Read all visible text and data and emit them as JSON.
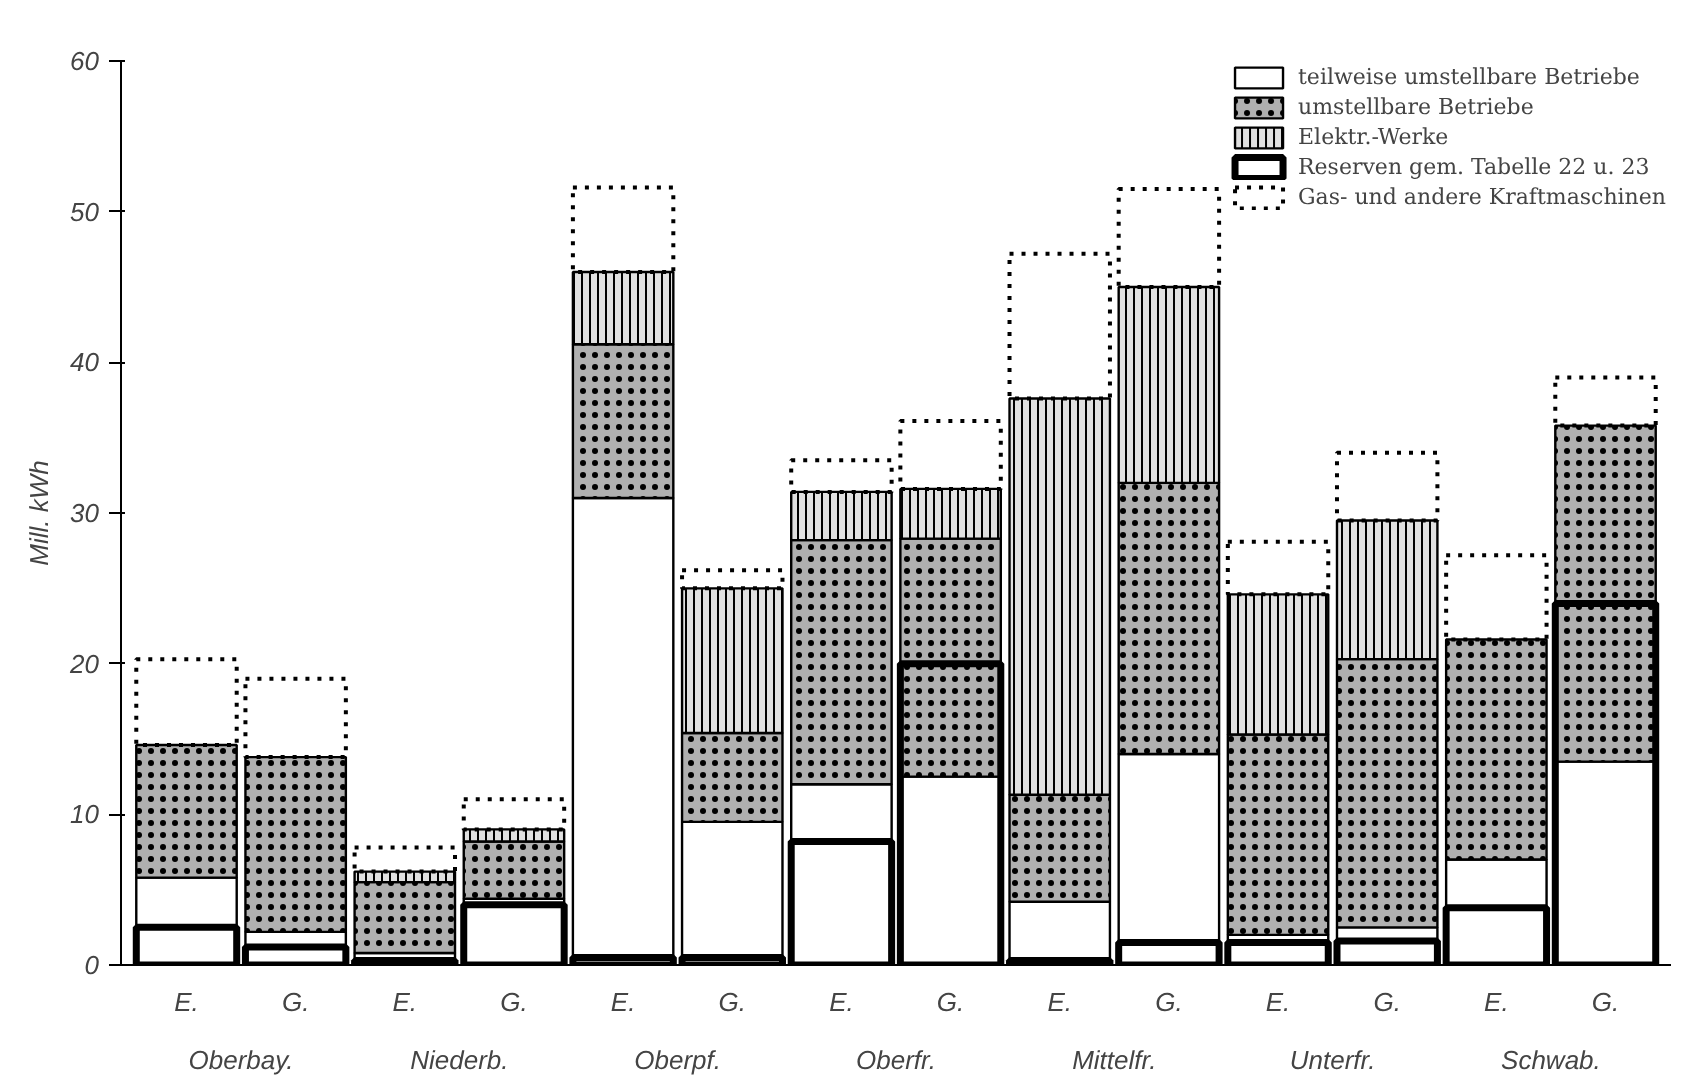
{
  "chart_data": {
    "type": "bar",
    "ylabel": "Mill. kWh",
    "categories": [
      "E.",
      "G.",
      "E.",
      "G.",
      "E.",
      "G.",
      "E.",
      "G.",
      "E.",
      "G.",
      "E.",
      "G.",
      "E.",
      "G."
    ],
    "annotations": [
      "Oberbay.",
      "Niederb.",
      "Oberpf.",
      "Oberfr.",
      "Mittelfr.",
      "Unterfr.",
      "Schwab."
    ],
    "series": [
      {
        "name": "teilweise umstellbare Betriebe",
        "color": "#ffffff",
        "base": [
          0,
          0,
          0,
          0,
          0,
          0,
          0,
          0,
          0,
          0,
          0,
          0,
          0,
          0
        ],
        "values": [
          5.8,
          2.2,
          0.8,
          4.4,
          31,
          9.5,
          12,
          12.5,
          4.2,
          14,
          2,
          2.5,
          7,
          13.5
        ]
      },
      {
        "name": "umstellbare Betriebe",
        "color": "#b0b0b0",
        "base": [
          5.8,
          2.2,
          0.8,
          4.4,
          31,
          9.5,
          12,
          12.5,
          4.2,
          14,
          2,
          2.5,
          7,
          13.5
        ],
        "values": [
          8.8,
          11.6,
          4.7,
          3.8,
          10.2,
          5.9,
          16.2,
          15.8,
          7.1,
          18,
          13.3,
          17.8,
          14.6,
          22.3
        ]
      },
      {
        "name": "Elektr.-Werke",
        "color": "#e0e0e0",
        "base": [
          null,
          null,
          5.5,
          8.2,
          41.2,
          15.4,
          28.2,
          28.3,
          11.3,
          32,
          15.3,
          20.3,
          null,
          null
        ],
        "values": [
          null,
          null,
          0.7,
          0.8,
          4.8,
          9.6,
          3.2,
          3.3,
          26.3,
          13,
          9.3,
          9.2,
          null,
          null
        ]
      },
      {
        "name": "Reserven gem. Tabelle 22 u. 23",
        "color": "#000000",
        "base": [
          0,
          0,
          0,
          0,
          0,
          0,
          0,
          0,
          0,
          0,
          0,
          0,
          0,
          0
        ],
        "values": [
          2.5,
          1.2,
          0.3,
          4,
          0.5,
          0.5,
          8.2,
          20,
          0.3,
          1.5,
          1.5,
          1.6,
          3.8,
          24
        ]
      },
      {
        "name": "Gas- und andere Kraftmaschinen",
        "color": "#000000",
        "line_style": "dotted",
        "base": [
          14.6,
          13.8,
          6.2,
          9,
          46,
          25,
          31.4,
          31.6,
          37.6,
          45,
          24.6,
          29.5,
          21.6,
          35.8
        ],
        "values": [
          5.7,
          5.2,
          1.6,
          2,
          5.6,
          1.2,
          2.1,
          4.5,
          9.6,
          6.5,
          3.5,
          4.5,
          5.6,
          3.2
        ]
      }
    ],
    "ylim": [
      0,
      60
    ],
    "yticks": [
      0,
      10,
      20,
      30,
      40,
      50,
      60
    ],
    "grid": false,
    "legend": "top right"
  }
}
